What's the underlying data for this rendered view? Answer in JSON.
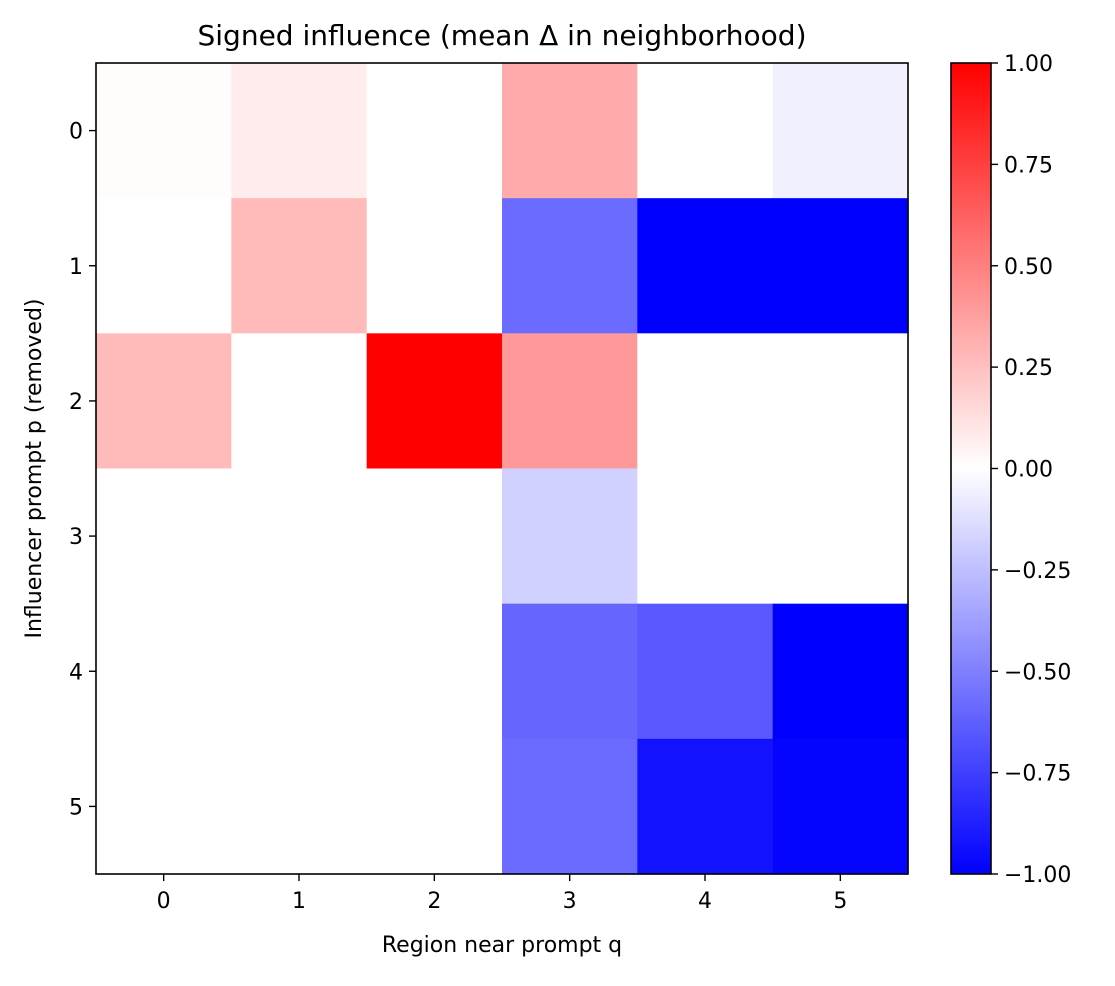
{
  "chart_data": {
    "type": "heatmap",
    "title": "Signed influence (mean Δ in neighborhood)",
    "xlabel": "Region near prompt q",
    "ylabel": "Influencer prompt p (removed)",
    "x_categories": [
      "0",
      "1",
      "2",
      "3",
      "4",
      "5"
    ],
    "y_categories": [
      "0",
      "1",
      "2",
      "3",
      "4",
      "5"
    ],
    "values": [
      [
        0.01,
        0.07,
        0.0,
        0.33,
        0.0,
        -0.06
      ],
      [
        0.0,
        0.27,
        0.0,
        -0.58,
        -1.0,
        -1.0
      ],
      [
        0.27,
        0.0,
        1.0,
        0.4,
        0.0,
        0.0
      ],
      [
        0.0,
        0.0,
        0.0,
        -0.18,
        0.0,
        0.0
      ],
      [
        0.0,
        0.0,
        0.0,
        -0.6,
        -0.65,
        -1.0
      ],
      [
        0.0,
        0.0,
        0.0,
        -0.58,
        -0.93,
        -0.98
      ]
    ],
    "colormap": {
      "name": "bwr",
      "low": "#0000ff",
      "mid": "#ffffff",
      "high": "#ff0000"
    },
    "vmin": -1.0,
    "vmax": 1.0,
    "colorbar_ticks": [
      1.0,
      0.75,
      0.5,
      0.25,
      0.0,
      -0.25,
      -0.5,
      -0.75,
      -1.0
    ],
    "colorbar_tick_labels": [
      "1.00",
      "0.75",
      "0.50",
      "0.25",
      "0.00",
      "−0.25",
      "−0.50",
      "−0.75",
      "−1.00"
    ],
    "grid": false
  }
}
